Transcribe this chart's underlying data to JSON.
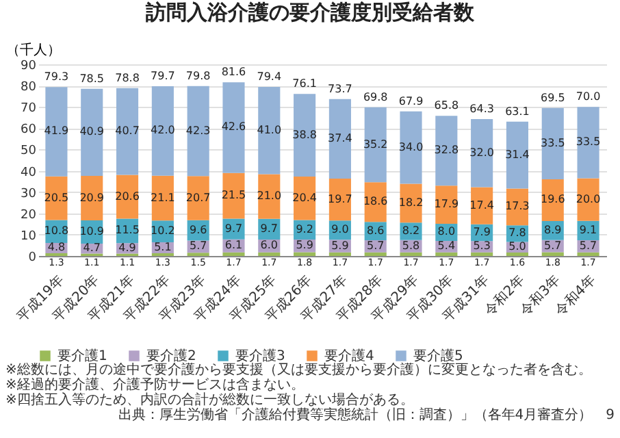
{
  "chart_data": {
    "type": "bar",
    "title": "訪問入浴介護の要介護度別受給者数",
    "ylabel": "（千人）",
    "stacked": true,
    "grid": "y",
    "legend": "bottom",
    "categories": [
      "平成19年",
      "平成20年",
      "平成21年",
      "平成22年",
      "平成23年",
      "平成24年",
      "平成25年",
      "平成26年",
      "平成27年",
      "平成28年",
      "平成29年",
      "平成30年",
      "平成31年",
      "令和2年",
      "令和3年",
      "令和4年"
    ],
    "ylim": [
      0,
      90
    ],
    "yticks": [
      0,
      10,
      20,
      30,
      40,
      50,
      60,
      70,
      80,
      90
    ],
    "series": [
      {
        "name": "要介護1",
        "color": "#9bbb59",
        "values": [
          1.3,
          1.1,
          1.1,
          1.3,
          1.5,
          1.7,
          1.7,
          1.8,
          1.7,
          1.7,
          1.7,
          1.7,
          1.7,
          1.6,
          1.8,
          1.7
        ],
        "value_labels": [
          "1.3",
          "1.1",
          "1.1",
          "1.3",
          "1.5",
          "1.7",
          "1.7",
          "1.8",
          "1.7",
          "1.7",
          "1.7",
          "1.7",
          "1.7",
          "1.6",
          "1.8",
          "1.7"
        ]
      },
      {
        "name": "要介護2",
        "color": "#b3a2c7",
        "values": [
          4.8,
          4.7,
          4.9,
          5.1,
          5.7,
          6.1,
          6.0,
          5.9,
          5.9,
          5.7,
          5.8,
          5.4,
          5.3,
          5.0,
          5.7,
          5.7
        ],
        "value_labels": [
          "4.8",
          "4.7",
          "4.9",
          "5.1",
          "5.7",
          "6.1",
          "6.0",
          "5.9",
          "5.9",
          "5.7",
          "5.8",
          "5.4",
          "5.3",
          "5.0",
          "5.7",
          "5.7"
        ]
      },
      {
        "name": "要介護3",
        "color": "#4bacc6",
        "values": [
          10.8,
          10.9,
          11.5,
          10.2,
          9.6,
          9.7,
          9.7,
          9.2,
          9.0,
          8.6,
          8.2,
          8.0,
          7.9,
          7.8,
          8.9,
          9.1
        ],
        "value_labels": [
          "10.8",
          "10.9",
          "11.5",
          "10.2",
          "9.6",
          "9.7",
          "9.7",
          "9.2",
          "9.0",
          "8.6",
          "8.2",
          "8.0",
          "7.9",
          "7.8",
          "8.9",
          "9.1"
        ]
      },
      {
        "name": "要介護4",
        "color": "#f79646",
        "values": [
          20.5,
          20.9,
          20.6,
          21.1,
          20.7,
          21.5,
          21.0,
          20.4,
          19.7,
          18.6,
          18.2,
          17.9,
          17.4,
          17.3,
          19.6,
          20.0
        ],
        "value_labels": [
          "20.5",
          "20.9",
          "20.6",
          "21.1",
          "20.7",
          "21.5",
          "21.0",
          "20.4",
          "19.7",
          "18.6",
          "18.2",
          "17.9",
          "17.4",
          "17.3",
          "19.6",
          "20.0"
        ]
      },
      {
        "name": "要介護5",
        "color": "#95b3d7",
        "values": [
          41.9,
          40.9,
          40.7,
          42.0,
          42.3,
          42.6,
          41.0,
          38.8,
          37.4,
          35.2,
          34.0,
          32.8,
          32.0,
          31.4,
          33.5,
          33.5
        ],
        "value_labels": [
          "41.9",
          "40.9",
          "40.7",
          "42.0",
          "42.3",
          "42.6",
          "41.0",
          "38.8",
          "37.4",
          "35.2",
          "34.0",
          "32.8",
          "32.0",
          "31.4",
          "33.5",
          "33.5"
        ]
      }
    ],
    "totals": [
      "79.3",
      "78.5",
      "78.8",
      "79.7",
      "79.8",
      "81.6",
      "79.4",
      "76.1",
      "73.7",
      "69.8",
      "67.9",
      "65.8",
      "64.3",
      "63.1",
      "69.5",
      "70.0"
    ],
    "annotations": [
      "※総数には、月の途中で要介護から要支援（又は要支援から要介護）に変更となった者を含む。",
      "※経過的要介護、介護予防サービスは含まない。",
      "※四捨五入等のため、内訳の合計が総数に一致しない場合がある。",
      "出典：厚生労働省「介護給付費等実態統計（旧：調査）」（各年4月審査分）",
      "9"
    ]
  }
}
